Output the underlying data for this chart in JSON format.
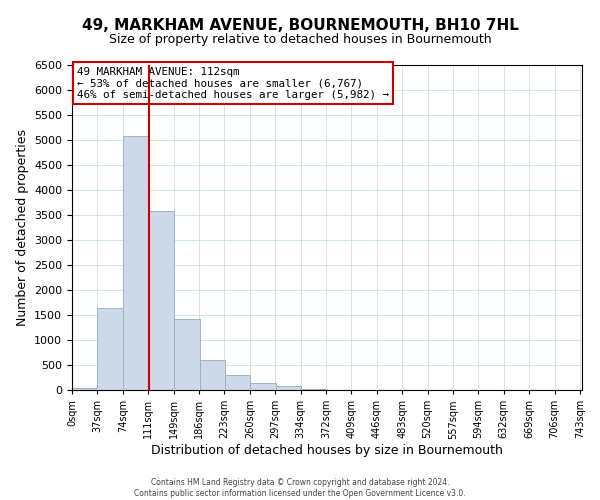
{
  "title": "49, MARKHAM AVENUE, BOURNEMOUTH, BH10 7HL",
  "subtitle": "Size of property relative to detached houses in Bournemouth",
  "xlabel": "Distribution of detached houses by size in Bournemouth",
  "ylabel": "Number of detached properties",
  "bar_left_edges": [
    0,
    37,
    74,
    111,
    149,
    186,
    223,
    260,
    297,
    334,
    372,
    409,
    446,
    483,
    520,
    557,
    594,
    632,
    669,
    706
  ],
  "bar_heights": [
    50,
    1650,
    5080,
    3590,
    1430,
    610,
    300,
    145,
    80,
    30,
    0,
    0,
    0,
    0,
    0,
    0,
    0,
    0,
    0,
    0
  ],
  "bin_width": 37,
  "bar_color": "#cdd8e8",
  "bar_edge_color": "#8faecb",
  "vline_x": 112,
  "vline_color": "#cc0000",
  "ylim_max": 6500,
  "yticks": [
    0,
    500,
    1000,
    1500,
    2000,
    2500,
    3000,
    3500,
    4000,
    4500,
    5000,
    5500,
    6000,
    6500
  ],
  "xtick_labels": [
    "0sqm",
    "37sqm",
    "74sqm",
    "111sqm",
    "149sqm",
    "186sqm",
    "223sqm",
    "260sqm",
    "297sqm",
    "334sqm",
    "372sqm",
    "409sqm",
    "446sqm",
    "483sqm",
    "520sqm",
    "557sqm",
    "594sqm",
    "632sqm",
    "669sqm",
    "706sqm",
    "743sqm"
  ],
  "annotation_title": "49 MARKHAM AVENUE: 112sqm",
  "annotation_line1": "← 53% of detached houses are smaller (6,767)",
  "annotation_line2": "46% of semi-detached houses are larger (5,982) →",
  "annotation_box_color": "#ffffff",
  "annotation_box_edge_color": "#cc0000",
  "footer_line1": "Contains HM Land Registry data © Crown copyright and database right 2024.",
  "footer_line2": "Contains public sector information licensed under the Open Government Licence v3.0.",
  "background_color": "#ffffff",
  "grid_color": "#ccdde8"
}
